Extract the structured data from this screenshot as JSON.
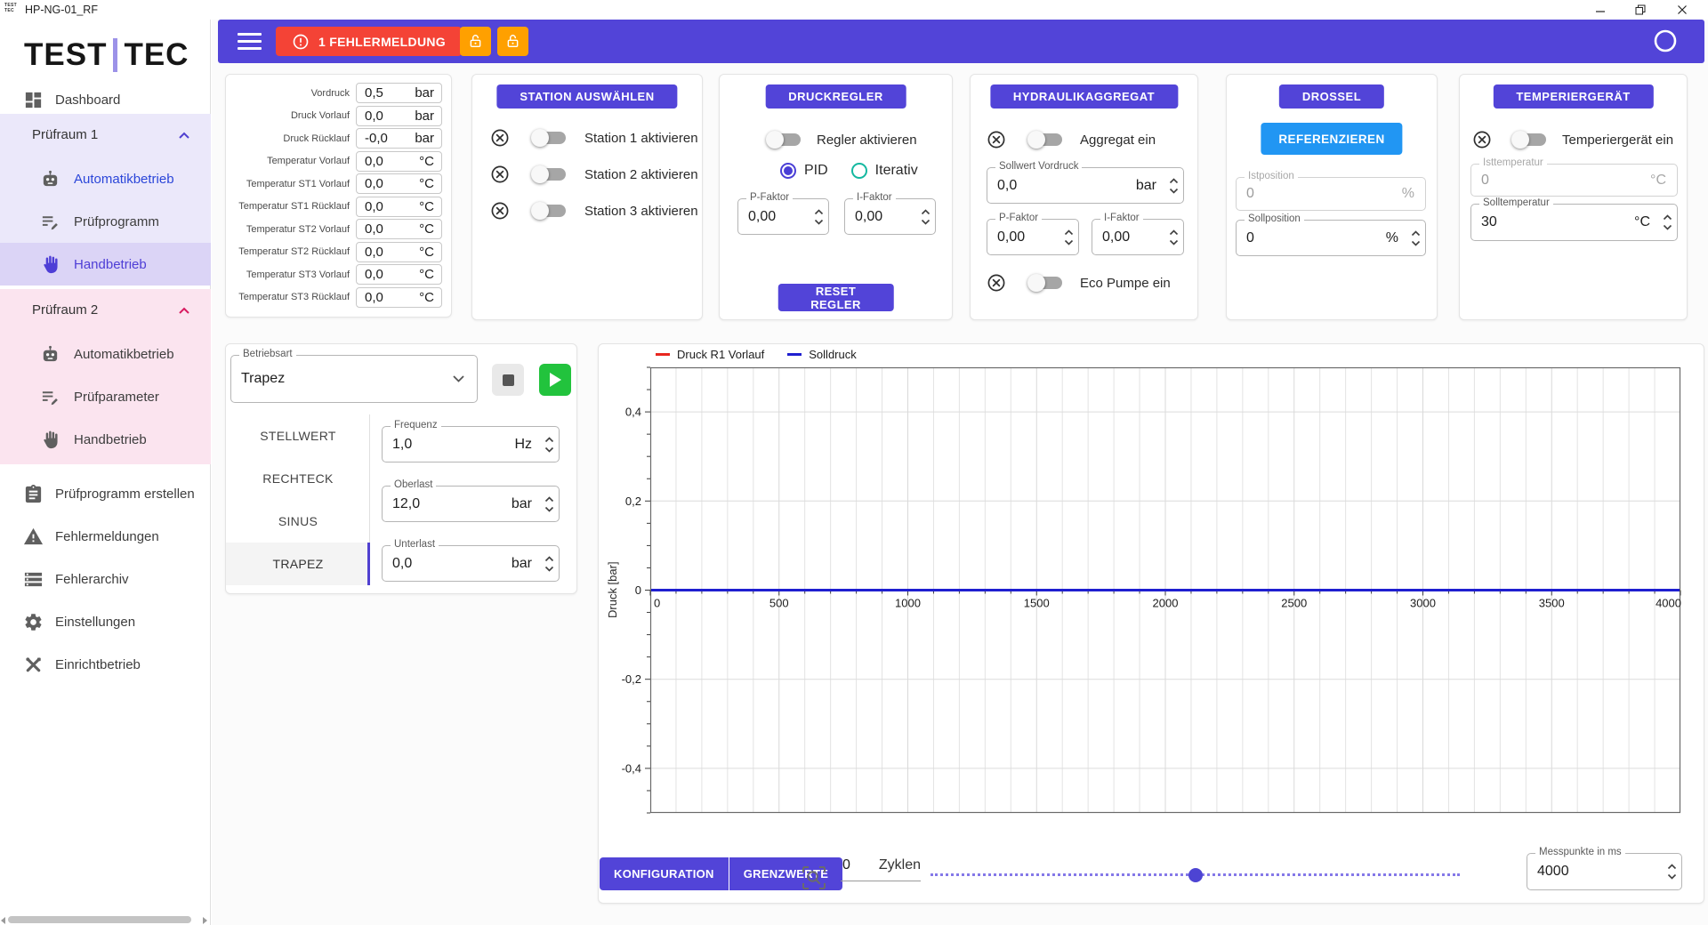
{
  "colors": {
    "primary": "#5244D8",
    "error": "#f44336",
    "warning": "#FFA000",
    "info": "#2196F3",
    "success": "#22C33D"
  },
  "title_bar": {
    "app_title": "HP-NG-01_RF"
  },
  "logo": {
    "part1": "TEST",
    "part2": "TEC"
  },
  "toolbar": {
    "error_button": "1 FEHLERMELDUNG"
  },
  "sidebar": {
    "dashboard": "Dashboard",
    "group1": {
      "title": "Prüfraum 1",
      "items": [
        "Automatikbetrieb",
        "Prüfprogramm",
        "Handbetrieb"
      ]
    },
    "group2": {
      "title": "Prüfraum 2",
      "items": [
        "Automatikbetrieb",
        "Prüfparameter",
        "Handbetrieb"
      ]
    },
    "items": [
      "Prüfprogramm erstellen",
      "Fehlermeldungen",
      "Fehlerarchiv",
      "Einstellungen",
      "Einrichtbetrieb"
    ]
  },
  "readings": {
    "rows": [
      {
        "label": "Vordruck",
        "value": "0,5",
        "unit": "bar"
      },
      {
        "label": "Druck Vorlauf",
        "value": "0,0",
        "unit": "bar"
      },
      {
        "label": "Druck Rücklauf",
        "value": "-0,0",
        "unit": "bar"
      },
      {
        "label": "Temperatur Vorlauf",
        "value": "0,0",
        "unit": "°C"
      },
      {
        "label": "Temperatur ST1 Vorlauf",
        "value": "0,0",
        "unit": "°C"
      },
      {
        "label": "Temperatur ST1 Rücklauf",
        "value": "0,0",
        "unit": "°C"
      },
      {
        "label": "Temperatur ST2 Vorlauf",
        "value": "0,0",
        "unit": "°C"
      },
      {
        "label": "Temperatur ST2 Rücklauf",
        "value": "0,0",
        "unit": "°C"
      },
      {
        "label": "Temperatur ST3 Vorlauf",
        "value": "0,0",
        "unit": "°C"
      },
      {
        "label": "Temperatur ST3 Rücklauf",
        "value": "0,0",
        "unit": "°C"
      }
    ]
  },
  "station": {
    "header": "STATION AUSWÄHLEN",
    "rows": [
      "Station 1 aktivieren",
      "Station 2 aktivieren",
      "Station 3 aktivieren"
    ]
  },
  "druckregler": {
    "header": "DRUCKREGLER",
    "toggle_label": "Regler aktivieren",
    "radio_pid": "PID",
    "radio_iterativ": "Iterativ",
    "p_faktor": {
      "label": "P-Faktor",
      "value": "0,00"
    },
    "i_faktor": {
      "label": "I-Faktor",
      "value": "0,00"
    },
    "reset_button": "RESET REGLER"
  },
  "hydraulik": {
    "header": "HYDRAULIKAGGREGAT",
    "toggle_label": "Aggregat ein",
    "sollwert": {
      "label": "Sollwert Vordruck",
      "value": "0,0",
      "unit": "bar"
    },
    "p_faktor": {
      "label": "P-Faktor",
      "value": "0,00"
    },
    "i_faktor": {
      "label": "I-Faktor",
      "value": "0,00"
    },
    "eco_label": "Eco Pumpe ein"
  },
  "drossel": {
    "header": "DROSSEL",
    "reference_button": "REFERENZIEREN",
    "istposition": {
      "label": "Istposition",
      "value": "0",
      "unit": "%"
    },
    "sollposition": {
      "label": "Sollposition",
      "value": "0",
      "unit": "%"
    }
  },
  "temperier": {
    "header": "TEMPERIERGERÄT",
    "toggle_label": "Temperiergerät ein",
    "isttemperatur": {
      "label": "Isttemperatur",
      "value": "0",
      "unit": "°C"
    },
    "solltemperatur": {
      "label": "Solltemperatur",
      "value": "30",
      "unit": "°C"
    }
  },
  "waveform": {
    "betriebsart": {
      "label": "Betriebsart",
      "value": "Trapez"
    },
    "tabs": [
      "STELLWERT",
      "RECHTECK",
      "SINUS",
      "TRAPEZ"
    ],
    "selected_tab": "TRAPEZ",
    "frequenz": {
      "label": "Frequenz",
      "value": "1,0",
      "unit": "Hz"
    },
    "oberlast": {
      "label": "Oberlast",
      "value": "12,0",
      "unit": "bar"
    },
    "unterlast": {
      "label": "Unterlast",
      "value": "0,0",
      "unit": "bar"
    }
  },
  "chart_data": {
    "type": "line",
    "title": "",
    "xlabel": "",
    "ylabel": "Druck [bar]",
    "legend": [
      {
        "name": "Druck R1 Vorlauf",
        "color": "#e8271f"
      },
      {
        "name": "Solldruck",
        "color": "#1f1fd0"
      }
    ],
    "legend_position": "top-left",
    "grid": true,
    "xlim": [
      0,
      4000
    ],
    "ylim": [
      -0.5,
      0.5
    ],
    "x_tick_interval": 500,
    "x_minor_interval": 100,
    "y_tick_interval": 0.2,
    "y_minor_interval": 0.05,
    "x_tick_values": [
      0,
      500,
      1000,
      1500,
      2000,
      2500,
      3000,
      3500,
      4000
    ],
    "x_tick_labels": [
      "0",
      "500",
      "1000",
      "1500",
      "2000",
      "2500",
      "3000",
      "3500",
      "4000"
    ],
    "y_tick_values": [
      0.4,
      0.2,
      0,
      -0.2,
      -0.4
    ],
    "y_tick_labels": [
      "0,4",
      "0,2",
      "0",
      "-0,2",
      "-0,4"
    ],
    "series": [
      {
        "name": "Druck R1 Vorlauf",
        "color": "#e8271f",
        "constant_y": 0
      },
      {
        "name": "Solldruck",
        "color": "#1f1fd0",
        "constant_y": 0
      }
    ]
  },
  "bottom": {
    "konfiguration": "KONFIGURATION",
    "grenzwerte": "GRENZWERTE",
    "zyklen_value": "0",
    "zyklen_label": "Zyklen",
    "slider_position": 0.5,
    "messpunkte": {
      "label": "Messpunkte in ms",
      "value": "4000"
    }
  }
}
